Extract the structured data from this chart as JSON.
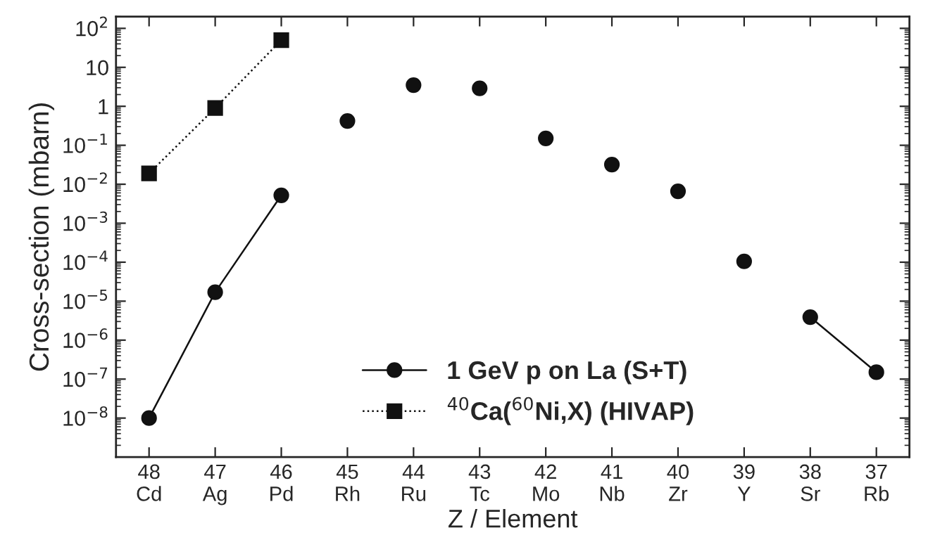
{
  "chart_data": {
    "type": "line",
    "xlabel": "Z / Element",
    "ylabel": "Cross-section (mbarn)",
    "categories": [
      "48\nCd",
      "47\nAg",
      "46\nPd",
      "45\nRh",
      "44\nRu",
      "43\nTc",
      "42\nMo",
      "41\nNb",
      "40\nZr",
      "39\nY",
      "38\nSr",
      "37\nRb"
    ],
    "series": [
      {
        "name": "1 GeV p on La (S+T)",
        "color": "#111111",
        "marker": "circle",
        "line_style": "solid",
        "values": [
          1e-08,
          1.7e-05,
          0.0052,
          null,
          null,
          null,
          null,
          null,
          null,
          null,
          3.9e-06,
          1.5e-07
        ]
      },
      {
        "color": "#111111",
        "type": "scatter",
        "marker": "circle",
        "values": [
          null,
          null,
          null,
          0.42,
          3.5,
          2.9,
          0.15,
          0.032,
          0.0066,
          0.000105,
          null,
          null
        ]
      },
      {
        "name": "$^{40}$Ca($^{60}$Ni,X) (HIVAP)",
        "color": "#111111",
        "marker": "square",
        "line_style": "dotted",
        "values": [
          0.019,
          0.9,
          50,
          null,
          null,
          null,
          null,
          null,
          null,
          null,
          null,
          null
        ]
      }
    ],
    "log": "y",
    "ylim": [
      1e-09,
      200
    ],
    "yticks": [
      {
        "value": 100,
        "label": "10$^{2}$"
      },
      10,
      1,
      {
        "value": 0.1,
        "label": "10$^{−1}$"
      },
      {
        "value": 0.01,
        "label": "10$^{−2}$"
      },
      {
        "value": 0.001,
        "label": "10$^{−3}$"
      },
      {
        "value": 0.0001,
        "label": "10$^{−4}$"
      },
      {
        "value": 1e-05,
        "label": "10$^{−5}$"
      },
      {
        "value": 1e-06,
        "label": "10$^{−6}$"
      },
      {
        "value": 1e-07,
        "label": "10$^{−7}$"
      },
      {
        "value": 1e-08,
        "label": "10$^{−8}$"
      }
    ],
    "grid": false,
    "legend": "bottom"
  }
}
